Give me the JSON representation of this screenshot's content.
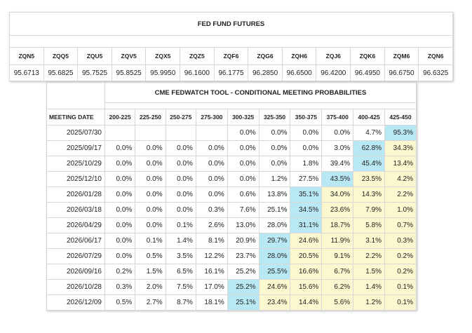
{
  "futures": {
    "title": "FED FUND FUTURES",
    "contracts": [
      "ZQN5",
      "ZQQ5",
      "ZQU5",
      "ZQV5",
      "ZQX5",
      "ZQZ5",
      "ZQF6",
      "ZQG6",
      "ZQH6",
      "ZQJ6",
      "ZQK6",
      "ZQM6",
      "ZQN6"
    ],
    "prices": [
      "95.6713",
      "95.6825",
      "95.7525",
      "95.8525",
      "95.9950",
      "96.1600",
      "96.1775",
      "96.2850",
      "96.6500",
      "96.4200",
      "96.4950",
      "96.6750",
      "96.6325"
    ]
  },
  "probabilities": {
    "title": "CME FEDWATCH TOOL - CONDITIONAL MEETING PROBABILITIES",
    "meeting_date_label": "MEETING DATE",
    "ranges": [
      "200-225",
      "225-250",
      "250-275",
      "275-300",
      "300-325",
      "325-350",
      "350-375",
      "375-400",
      "400-425",
      "425-450"
    ],
    "rows": [
      {
        "date": "2025/07/30",
        "values": [
          "",
          "",
          "",
          "",
          "0.0%",
          "0.0%",
          "0.0%",
          "0.0%",
          "4.7%",
          "95.3%"
        ]
      },
      {
        "date": "2025/09/17",
        "values": [
          "0.0%",
          "0.0%",
          "0.0%",
          "0.0%",
          "0.0%",
          "0.0%",
          "0.0%",
          "3.0%",
          "62.8%",
          "34.3%"
        ]
      },
      {
        "date": "2025/10/29",
        "values": [
          "0.0%",
          "0.0%",
          "0.0%",
          "0.0%",
          "0.0%",
          "0.0%",
          "1.8%",
          "39.4%",
          "45.4%",
          "13.4%"
        ]
      },
      {
        "date": "2025/12/10",
        "values": [
          "0.0%",
          "0.0%",
          "0.0%",
          "0.0%",
          "0.0%",
          "1.2%",
          "27.5%",
          "43.5%",
          "23.5%",
          "4.2%"
        ]
      },
      {
        "date": "2026/01/28",
        "values": [
          "0.0%",
          "0.0%",
          "0.0%",
          "0.0%",
          "0.6%",
          "13.8%",
          "35.1%",
          "34.0%",
          "14.3%",
          "2.2%"
        ]
      },
      {
        "date": "2026/03/18",
        "values": [
          "0.0%",
          "0.0%",
          "0.0%",
          "0.3%",
          "7.6%",
          "25.1%",
          "34.5%",
          "23.6%",
          "7.9%",
          "1.0%"
        ]
      },
      {
        "date": "2026/04/29",
        "values": [
          "0.0%",
          "0.0%",
          "0.1%",
          "2.6%",
          "13.0%",
          "28.0%",
          "31.1%",
          "18.7%",
          "5.8%",
          "0.7%"
        ]
      },
      {
        "date": "2026/06/17",
        "values": [
          "0.0%",
          "0.1%",
          "1.4%",
          "8.1%",
          "20.9%",
          "29.7%",
          "24.6%",
          "11.9%",
          "3.1%",
          "0.3%"
        ]
      },
      {
        "date": "2026/07/29",
        "values": [
          "0.0%",
          "0.5%",
          "3.5%",
          "12.2%",
          "23.7%",
          "28.0%",
          "20.5%",
          "9.1%",
          "2.2%",
          "0.2%"
        ]
      },
      {
        "date": "2026/09/16",
        "values": [
          "0.2%",
          "1.5%",
          "6.5%",
          "16.1%",
          "25.2%",
          "25.5%",
          "16.6%",
          "6.7%",
          "1.5%",
          "0.2%"
        ]
      },
      {
        "date": "2026/10/28",
        "values": [
          "0.3%",
          "2.0%",
          "7.5%",
          "17.0%",
          "25.2%",
          "24.6%",
          "15.6%",
          "6.2%",
          "1.4%",
          "0.1%"
        ]
      },
      {
        "date": "2026/12/09",
        "values": [
          "0.5%",
          "2.7%",
          "8.7%",
          "18.1%",
          "25.1%",
          "23.4%",
          "14.4%",
          "5.6%",
          "1.2%",
          "0.1%"
        ]
      }
    ],
    "highlight_color": "#b8e8f3",
    "shade_color": "#fbf8cf"
  }
}
